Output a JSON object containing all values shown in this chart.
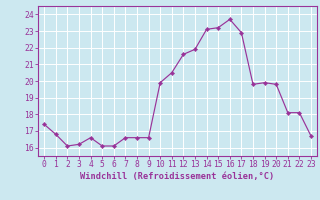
{
  "x": [
    0,
    1,
    2,
    3,
    4,
    5,
    6,
    7,
    8,
    9,
    10,
    11,
    12,
    13,
    14,
    15,
    16,
    17,
    18,
    19,
    20,
    21,
    22,
    23
  ],
  "y": [
    17.4,
    16.8,
    16.1,
    16.2,
    16.6,
    16.1,
    16.1,
    16.6,
    16.6,
    16.6,
    19.9,
    20.5,
    21.6,
    21.9,
    23.1,
    23.2,
    23.7,
    22.9,
    19.8,
    19.9,
    19.8,
    18.1,
    18.1,
    16.7
  ],
  "line_color": "#993399",
  "marker": "D",
  "marker_size": 2.2,
  "bg_color": "#cce8f0",
  "grid_color": "#ffffff",
  "xlabel": "Windchill (Refroidissement éolien,°C)",
  "xlim": [
    -0.5,
    23.5
  ],
  "ylim": [
    15.5,
    24.5
  ],
  "yticks": [
    16,
    17,
    18,
    19,
    20,
    21,
    22,
    23,
    24
  ],
  "xticks": [
    0,
    1,
    2,
    3,
    4,
    5,
    6,
    7,
    8,
    9,
    10,
    11,
    12,
    13,
    14,
    15,
    16,
    17,
    18,
    19,
    20,
    21,
    22,
    23
  ],
  "tick_color": "#993399",
  "label_color": "#993399",
  "tick_fontsize": 5.8,
  "xlabel_fontsize": 6.2
}
